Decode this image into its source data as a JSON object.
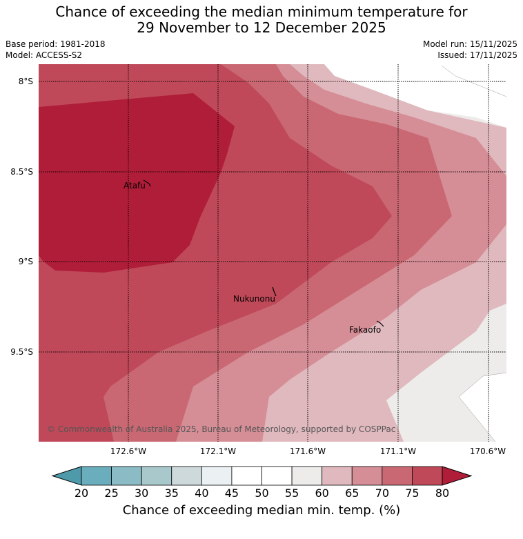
{
  "title": {
    "line1": "Chance of exceeding the median minimum temperature for",
    "line2": "29 November to 12 December 2025"
  },
  "meta": {
    "base_period": "Base period: 1981-2018",
    "model": "Model: ACCESS-S2",
    "model_run": "Model run: 15/11/2025",
    "issued": "Issued: 17/11/2025"
  },
  "axes": {
    "lat_labels": [
      "8°S",
      "8.5°S",
      "9°S",
      "9.5°S"
    ],
    "lon_labels": [
      "172.6°W",
      "172.1°W",
      "171.6°W",
      "171.1°W",
      "170.6°W"
    ]
  },
  "places": [
    {
      "name": "Atafu"
    },
    {
      "name": "Nukunonu"
    },
    {
      "name": "Fakaofo"
    }
  ],
  "copyright": "© Commonwealth of Australia 2025, Bureau of Meteorology, supported by COSPPac",
  "colorbar": {
    "ticks": [
      "20",
      "25",
      "30",
      "35",
      "40",
      "45",
      "50",
      "55",
      "60",
      "65",
      "70",
      "75",
      "80"
    ],
    "colors": {
      "lt20": "#4e9aaa",
      "b20_25": "#6aadbc",
      "b25_30": "#8bbcc5",
      "b30_35": "#a9c8cc",
      "b35_40": "#cdd9db",
      "b40_45": "#ebf1f3",
      "b45_50": "#ffffff",
      "b50_55": "#ffffff",
      "b55_60": "#edecea",
      "b60_65": "#e0b9be",
      "b65_70": "#d58d96",
      "b70_75": "#c96872",
      "b75_80": "#bf4959",
      "gt80": "#b01d38"
    },
    "title": "Chance of exceeding median min. temp. (%)"
  }
}
